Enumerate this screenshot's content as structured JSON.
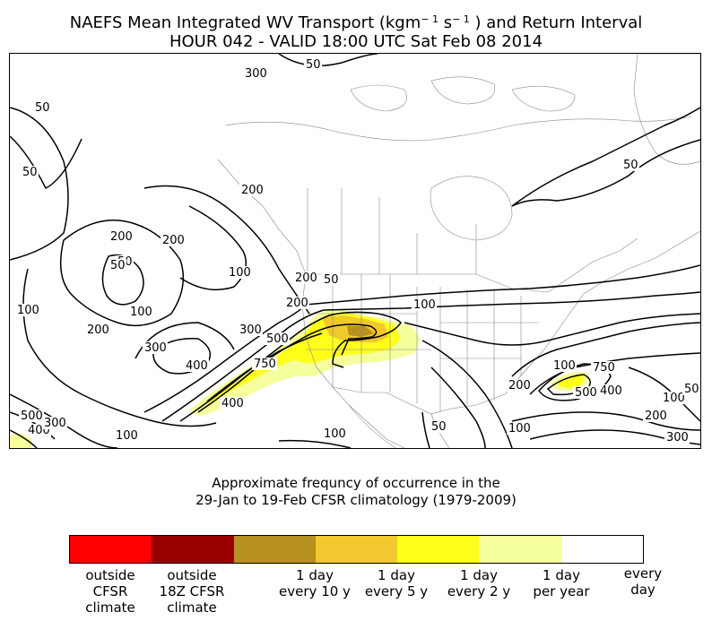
{
  "title": {
    "line1_prefix": "NAEFS Mean Integrated WV Transport (kgm",
    "sup1": "− 1",
    "mid": " s",
    "sup2": "− 1",
    "line1_suffix": " ) and Return Interval",
    "line2": "HOUR 042 - VALID 18:00 UTC Sat Feb 08 2014"
  },
  "map": {
    "contour_labels": [
      "50",
      "50",
      "50",
      "50",
      "50",
      "50",
      "200",
      "200",
      "200",
      "200",
      "50",
      "100",
      "100",
      "100",
      "100",
      "200",
      "300",
      "400",
      "500",
      "300",
      "750",
      "400",
      "100",
      "100",
      "100",
      "200",
      "300",
      "400",
      "500",
      "750",
      "100",
      "200",
      "300",
      "200",
      "50",
      "50",
      "500",
      "400",
      "300",
      "100"
    ],
    "colors": {
      "contour": "#000000",
      "border": "#888888",
      "shade_light": "#f5ff9c",
      "shade_yellow": "#ffff1a",
      "shade_gold": "#f1c82d",
      "shade_brown": "#b8901f"
    }
  },
  "caption": {
    "line1": "Approximate frequncy of occurrence in the",
    "line2": "29-Jan to 19-Feb CFSR climatology (1979-2009)"
  },
  "colorbar": {
    "segments": [
      {
        "color": "#ff0000",
        "weight": 1
      },
      {
        "color": "#ff0000",
        "weight": 1
      },
      {
        "color": "#990000",
        "weight": 1
      },
      {
        "color": "#990000",
        "weight": 1
      },
      {
        "color": "#b8901f",
        "weight": 2
      },
      {
        "color": "#f1c82d",
        "weight": 2
      },
      {
        "color": "#ffff1a",
        "weight": 2
      },
      {
        "color": "#f5ff9c",
        "weight": 2
      },
      {
        "color": "#ffffff",
        "weight": 2
      }
    ],
    "labels": [
      {
        "lines": [
          "outside",
          "CFSR",
          "climate"
        ]
      },
      {
        "lines": [
          "outside",
          "18Z CFSR",
          "climate"
        ]
      },
      {
        "lines": [
          "1 day",
          "every 10 y"
        ]
      },
      {
        "lines": [
          "1 day",
          "every 5 y"
        ]
      },
      {
        "lines": [
          "1 day",
          "every 2 y"
        ]
      },
      {
        "lines": [
          "1 day",
          "per year"
        ]
      },
      {
        "lines": [
          "every",
          "day"
        ]
      }
    ]
  }
}
